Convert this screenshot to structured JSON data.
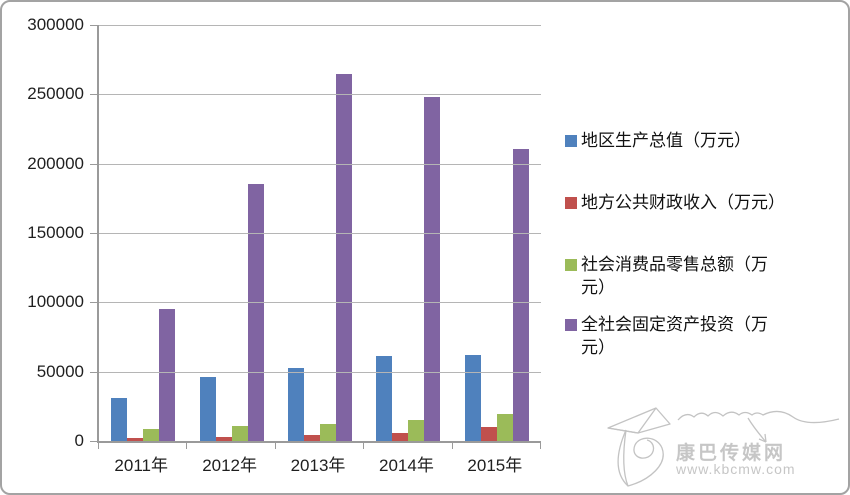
{
  "watermark": {
    "site_name": "康巴传媒网",
    "url": "www.kbcmw.com"
  },
  "chart_data": {
    "type": "bar",
    "title": "",
    "xlabel": "",
    "ylabel": "",
    "categories": [
      "2011年",
      "2012年",
      "2013年",
      "2014年",
      "2015年"
    ],
    "series": [
      {
        "name": "地区生产总值（万元）",
        "color": "#4F81BD",
        "values": [
          31000,
          46000,
          52500,
          61000,
          62000
        ]
      },
      {
        "name": "地方公共财政收入（万元）",
        "color": "#C0504D",
        "values": [
          2000,
          3000,
          4000,
          6000,
          10000
        ]
      },
      {
        "name": "社会消费品零售总额（万元）",
        "color": "#9BBB59",
        "values": [
          9000,
          10500,
          12000,
          15000,
          19500
        ]
      },
      {
        "name": "全社会固定资产投资（万元）",
        "color": "#8064A2",
        "values": [
          95500,
          185000,
          265000,
          248000,
          210500
        ]
      }
    ],
    "ylim": [
      0,
      300000
    ],
    "ytick_interval": 50000,
    "yticks": [
      0,
      50000,
      100000,
      150000,
      200000,
      250000,
      300000
    ],
    "grid": true,
    "legend_position": "right"
  },
  "colors": {
    "gridline": "#b5b5b5",
    "axis": "#9a9a9a",
    "text": "#1f1f1f",
    "watermark": "#c6c6c6",
    "frame_border": "#a3a3a3"
  }
}
